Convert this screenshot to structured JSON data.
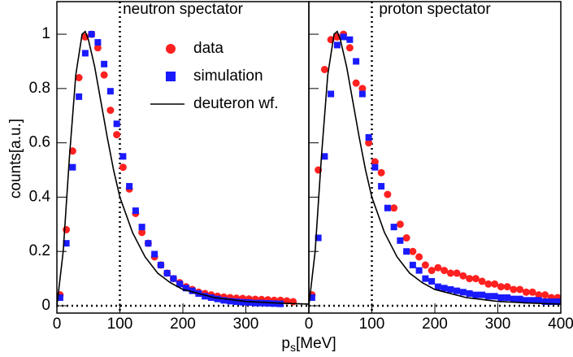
{
  "chart_data": [
    {
      "type": "scatter",
      "title": "neutron spectator",
      "ylabel": "counts[a.u.]",
      "xlabel": "p",
      "xlabel_sub": "s",
      "xlabel_unit": "[MeV]",
      "xlim": [
        0,
        400
      ],
      "ylim": [
        -0.027,
        1.12
      ],
      "xticks": [
        0,
        100,
        200,
        300
      ],
      "yticks": [
        0,
        0.2,
        0.4,
        0.6,
        0.8,
        1
      ],
      "vline": 100,
      "hline": 0,
      "legend": "upper right",
      "series": [
        {
          "name": "data",
          "color": "#ff2020",
          "marker": "circle",
          "x": [
            5,
            15,
            25,
            35,
            45,
            55,
            65,
            75,
            85,
            95,
            105,
            115,
            125,
            135,
            145,
            155,
            165,
            175,
            185,
            195,
            205,
            215,
            225,
            235,
            245,
            255,
            265,
            275,
            285,
            295,
            305,
            315,
            325,
            335,
            345,
            355,
            365,
            375
          ],
          "values": [
            0.04,
            0.28,
            0.57,
            0.84,
            0.99,
            1.0,
            0.95,
            0.85,
            0.72,
            0.63,
            0.51,
            0.43,
            0.34,
            0.27,
            0.23,
            0.18,
            0.15,
            0.12,
            0.1,
            0.085,
            0.07,
            0.06,
            0.05,
            0.045,
            0.04,
            0.035,
            0.032,
            0.03,
            0.028,
            0.027,
            0.025,
            0.024,
            0.023,
            0.022,
            0.02,
            0.02,
            0.018,
            0.015
          ]
        },
        {
          "name": "simulation",
          "color": "#1a1aff",
          "marker": "square",
          "x": [
            5,
            15,
            25,
            35,
            45,
            55,
            65,
            75,
            85,
            95,
            105,
            115,
            125,
            135,
            145,
            155,
            165,
            175,
            185,
            195,
            205,
            215,
            225,
            235,
            245,
            255,
            265,
            275,
            285,
            295,
            305,
            315,
            325,
            335,
            345,
            355
          ],
          "values": [
            0.03,
            0.23,
            0.51,
            0.77,
            0.93,
            1.0,
            0.97,
            0.89,
            0.79,
            0.67,
            0.55,
            0.44,
            0.35,
            0.29,
            0.23,
            0.19,
            0.15,
            0.12,
            0.1,
            0.08,
            0.065,
            0.055,
            0.045,
            0.035,
            0.03,
            0.025,
            0.02,
            0.017,
            0.015,
            0.013,
            0.012,
            0.01,
            0.01,
            0.009,
            0.008,
            0.007
          ]
        },
        {
          "name": "deuteron wf.",
          "color": "#000000",
          "marker": "line",
          "x": [
            0,
            10,
            20,
            30,
            40,
            45,
            50,
            60,
            70,
            80,
            90,
            100,
            120,
            140,
            160,
            180,
            200,
            250,
            300,
            350,
            400
          ],
          "values": [
            0,
            0.2,
            0.55,
            0.85,
            1.0,
            1.01,
            0.98,
            0.88,
            0.75,
            0.62,
            0.5,
            0.4,
            0.27,
            0.18,
            0.12,
            0.085,
            0.06,
            0.03,
            0.016,
            0.01,
            0.006
          ]
        }
      ]
    },
    {
      "type": "scatter",
      "title": "proton spectator",
      "xlim": [
        0,
        400
      ],
      "ylim": [
        -0.027,
        1.12
      ],
      "xticks": [
        0,
        100,
        200,
        300,
        400
      ],
      "yticks": [
        0,
        0.2,
        0.4,
        0.6,
        0.8,
        1
      ],
      "vline": 100,
      "hline": 0,
      "series": [
        {
          "color": "#ff2020",
          "marker": "circle",
          "x": [
            5,
            15,
            25,
            35,
            45,
            55,
            65,
            75,
            85,
            95,
            105,
            115,
            125,
            135,
            145,
            155,
            165,
            175,
            185,
            195,
            205,
            215,
            225,
            235,
            245,
            255,
            265,
            275,
            285,
            295,
            305,
            315,
            325,
            335,
            345,
            355,
            365,
            375,
            385,
            395
          ],
          "values": [
            0.04,
            0.5,
            0.87,
            0.98,
            0.99,
            1.0,
            0.95,
            0.82,
            0.8,
            0.6,
            0.53,
            0.49,
            0.41,
            0.36,
            0.3,
            0.25,
            0.2,
            0.18,
            0.15,
            0.13,
            0.14,
            0.13,
            0.12,
            0.12,
            0.11,
            0.1,
            0.1,
            0.09,
            0.08,
            0.08,
            0.07,
            0.07,
            0.06,
            0.06,
            0.05,
            0.05,
            0.04,
            0.04,
            0.03,
            0.03
          ]
        },
        {
          "color": "#1a1aff",
          "marker": "square",
          "x": [
            5,
            15,
            25,
            35,
            45,
            55,
            65,
            75,
            85,
            95,
            105,
            115,
            125,
            135,
            145,
            155,
            165,
            175,
            185,
            195,
            205,
            215,
            225,
            235,
            245,
            255,
            265,
            275,
            285,
            295,
            305,
            315,
            325,
            335,
            345,
            355,
            365,
            375,
            385,
            395
          ],
          "values": [
            0.03,
            0.25,
            0.55,
            0.78,
            0.96,
            0.99,
            0.98,
            0.9,
            0.78,
            0.62,
            0.51,
            0.44,
            0.36,
            0.29,
            0.24,
            0.2,
            0.15,
            0.13,
            0.1,
            0.09,
            0.07,
            0.065,
            0.06,
            0.055,
            0.05,
            0.045,
            0.04,
            0.04,
            0.035,
            0.035,
            0.03,
            0.03,
            0.025,
            0.025,
            0.02,
            0.02,
            0.02,
            0.015,
            0.015,
            0.015
          ]
        },
        {
          "color": "#000000",
          "marker": "line",
          "x": [
            0,
            10,
            20,
            30,
            40,
            45,
            50,
            60,
            70,
            80,
            90,
            100,
            120,
            140,
            160,
            180,
            200,
            250,
            300,
            350,
            400
          ],
          "values": [
            0,
            0.2,
            0.55,
            0.85,
            1.0,
            1.01,
            0.98,
            0.88,
            0.75,
            0.62,
            0.5,
            0.4,
            0.27,
            0.18,
            0.12,
            0.085,
            0.06,
            0.03,
            0.016,
            0.01,
            0.006
          ]
        }
      ]
    }
  ]
}
